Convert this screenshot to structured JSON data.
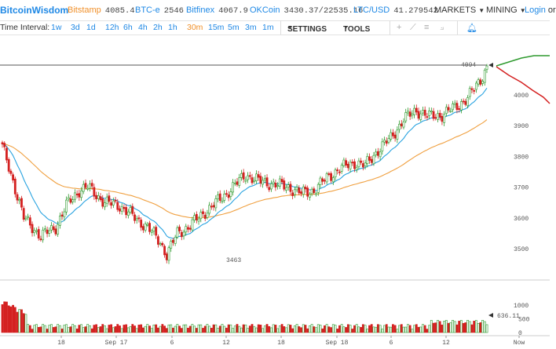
{
  "header": {
    "brand": "BitcoinWisdom",
    "tickers": [
      {
        "name": "Bitstamp",
        "price": "4085.4",
        "color": "#f0902a"
      },
      {
        "name": "BTC-e",
        "price": "2546",
        "color": "#1e88e5"
      },
      {
        "name": "Bitfinex",
        "price": "4067.9",
        "color": "#1e88e5"
      },
      {
        "name": "OKCoin",
        "price": "3430.37/22535.16",
        "color": "#1e88e5"
      },
      {
        "name": "LTC/USD",
        "price": "41.279542",
        "color": "#1e88e5"
      }
    ],
    "markets_label": "MARKETS",
    "mining_label": "MINING",
    "login_label": "Login",
    "or_label": "or"
  },
  "toolbar": {
    "time_interval_label": "Time Interval:",
    "intervals": [
      "1w",
      "3d",
      "1d",
      "12h",
      "6h",
      "4h",
      "2h",
      "1h",
      "30m",
      "15m",
      "5m",
      "3m",
      "1m"
    ],
    "active_interval": "30m",
    "settings_label": "SETTINGS",
    "tools_label": "TOOLS"
  },
  "chart_data": {
    "type": "candlestick",
    "price_axis_ticks": [
      "4000",
      "3900",
      "3800",
      "3700",
      "3600",
      "3500"
    ],
    "volume_axis_ticks": [
      "1000",
      "500",
      "0"
    ],
    "x_tick_labels": [
      "18",
      "Sep 17",
      "6",
      "12",
      "18",
      "Sep 18",
      "6",
      "12",
      "Now"
    ],
    "current_price_label": "4094",
    "low_marker_label": "3463",
    "volume_marker_label": "636.11",
    "colors": {
      "up": "#2e9a2e",
      "down": "#d42020",
      "ema_fast": "#29a3e0",
      "ema_slow": "#f0a040",
      "ask": "#d42020",
      "bid": "#2e9a2e",
      "accent": "#1e88e5",
      "orange": "#f0902a"
    }
  }
}
